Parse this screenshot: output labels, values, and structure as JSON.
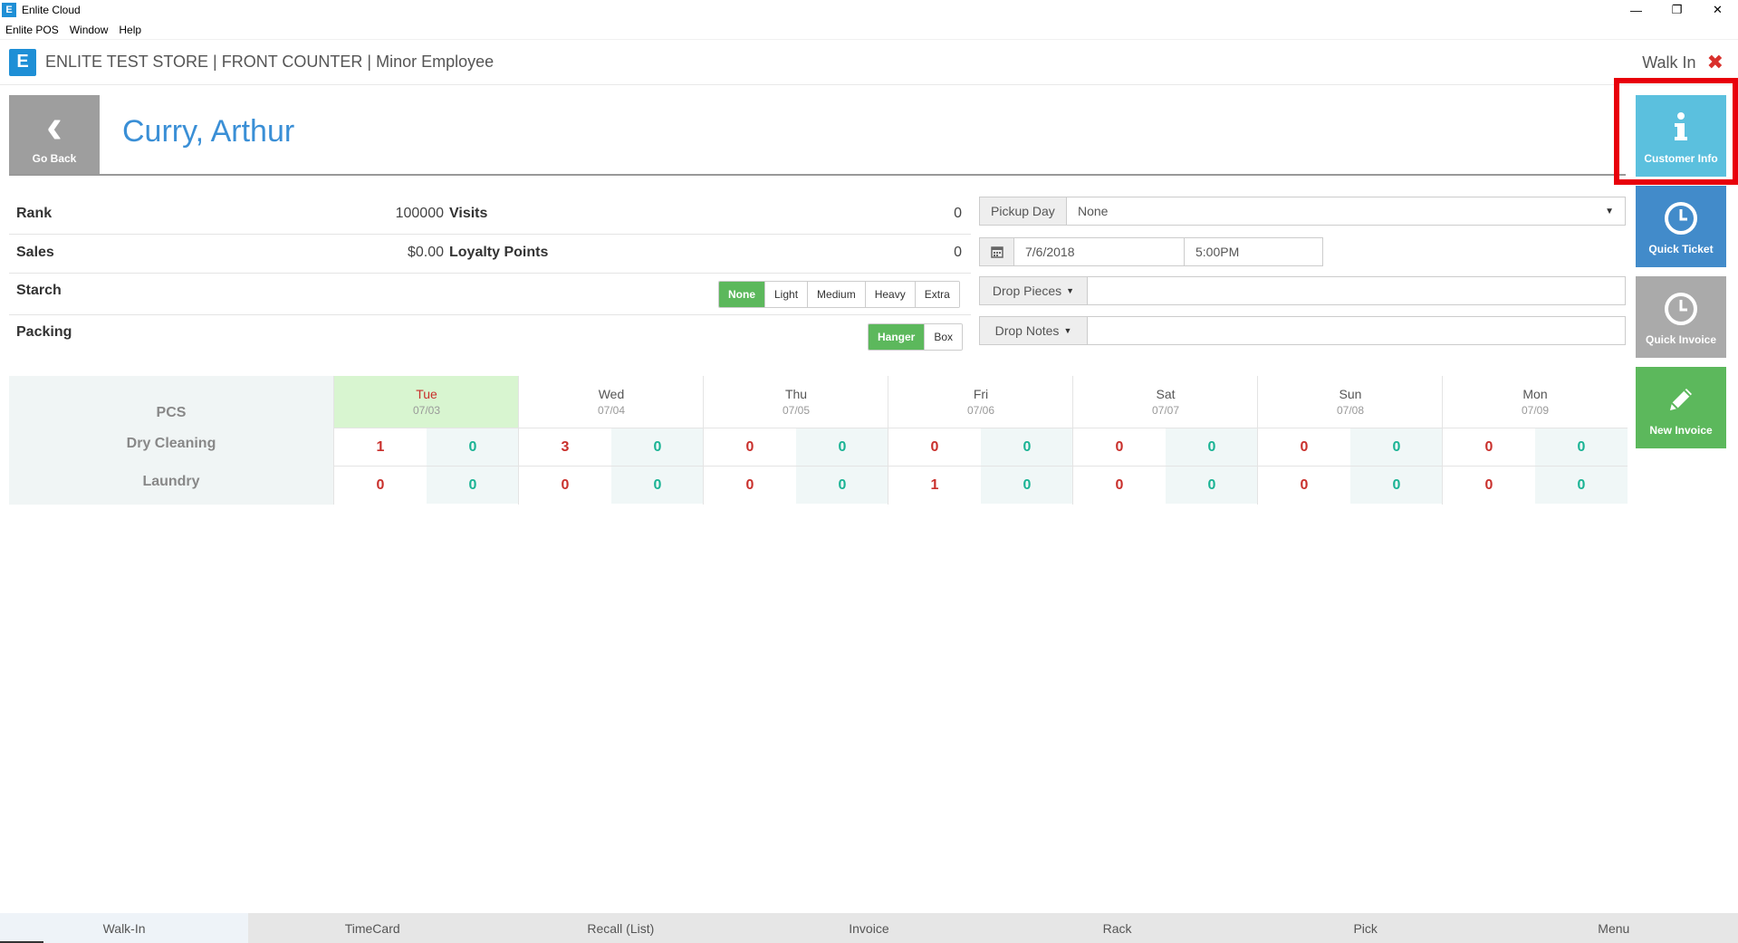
{
  "window": {
    "icon_glyph": "E",
    "title": "Enlite Cloud",
    "controls": [
      "—",
      "❐",
      "✕"
    ]
  },
  "menubar": [
    "Enlite POS",
    "Window",
    "Help"
  ],
  "header": {
    "logo_glyph": "E",
    "title": "ENLITE TEST STORE | FRONT COUNTER | Minor Employee",
    "walk_in_label": "Walk In",
    "close_glyph": "✖"
  },
  "customer": {
    "go_back_label": "Go Back",
    "name": "Curry, Arthur"
  },
  "side_buttons": [
    {
      "label": "Customer Info",
      "icon": "info-icon",
      "color": "#5bc0de"
    },
    {
      "label": "Quick Ticket",
      "icon": "clock-icon",
      "color": "#428bca"
    },
    {
      "label": "Quick Invoice",
      "icon": "clock-icon",
      "color": "#aaaaaa"
    },
    {
      "label": "New Invoice",
      "icon": "pencil-icon",
      "color": "#5cb85c"
    }
  ],
  "stats": {
    "rank_label": "Rank",
    "rank_value": "100000",
    "visits_label": "Visits",
    "visits_value": "0",
    "sales_label": "Sales",
    "sales_value": "$0.00",
    "loyalty_label": "Loyalty Points",
    "loyalty_value": "0",
    "starch_label": "Starch",
    "starch_options": [
      "None",
      "Light",
      "Medium",
      "Heavy",
      "Extra"
    ],
    "starch_selected": "None",
    "packing_label": "Packing",
    "packing_options": [
      "Hanger",
      "Box"
    ],
    "packing_selected": "Hanger"
  },
  "form": {
    "pickup_day_label": "Pickup Day",
    "pickup_day_value": "None",
    "date_value": "7/6/2018",
    "time_value": "5:00PM",
    "drop_pieces_label": "Drop Pieces",
    "drop_pieces_value": "",
    "drop_notes_label": "Drop Notes",
    "drop_notes_value": ""
  },
  "week": {
    "pcs_label": "PCS",
    "row_labels": [
      "Dry Cleaning",
      "Laundry"
    ],
    "days": [
      {
        "name": "Tue",
        "date": "07/03",
        "today": true,
        "dry": [
          "1",
          "0"
        ],
        "laundry": [
          "0",
          "0"
        ]
      },
      {
        "name": "Wed",
        "date": "07/04",
        "today": false,
        "dry": [
          "3",
          "0"
        ],
        "laundry": [
          "0",
          "0"
        ]
      },
      {
        "name": "Thu",
        "date": "07/05",
        "today": false,
        "dry": [
          "0",
          "0"
        ],
        "laundry": [
          "0",
          "0"
        ]
      },
      {
        "name": "Fri",
        "date": "07/06",
        "today": false,
        "dry": [
          "0",
          "0"
        ],
        "laundry": [
          "1",
          "0"
        ]
      },
      {
        "name": "Sat",
        "date": "07/07",
        "today": false,
        "dry": [
          "0",
          "0"
        ],
        "laundry": [
          "0",
          "0"
        ]
      },
      {
        "name": "Sun",
        "date": "07/08",
        "today": false,
        "dry": [
          "0",
          "0"
        ],
        "laundry": [
          "0",
          "0"
        ]
      },
      {
        "name": "Mon",
        "date": "07/09",
        "today": false,
        "dry": [
          "0",
          "0"
        ],
        "laundry": [
          "0",
          "0"
        ]
      }
    ]
  },
  "bottom_nav": {
    "tabs": [
      "Walk-In",
      "TimeCard",
      "Recall (List)",
      "Invoice",
      "Rack",
      "Pick",
      "Menu"
    ],
    "active": "Walk-In"
  }
}
